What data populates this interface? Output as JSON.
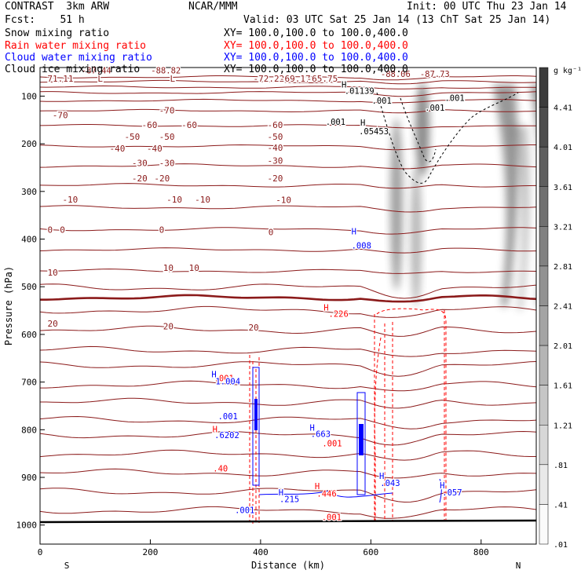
{
  "header": {
    "model": "CONTRAST  3km ARW",
    "center": "NCAR/MMM",
    "init": "Init: 00 UTC Thu 23 Jan 14",
    "fcst": "Fcst:    51 h",
    "valid": "Valid: 03 UTC Sat 25 Jan 14 (13 ChT Sat 25 Jan 14)"
  },
  "fields": [
    {
      "name": "Snow mixing ratio",
      "xy": "",
      "color": "#000000"
    },
    {
      "name": "Rain water mixing ratio",
      "xy": "XY= 100.0,100.0 to 100.0,400.0",
      "color": "#ff0000"
    },
    {
      "name": "Cloud water mixing ratio",
      "xy": "XY= 100.0,100.0 to 100.0,400.0",
      "color": "#0000ff"
    },
    {
      "name": "Cloud ice mixing ratio",
      "xy": "XY= 100.0,100.0 to 100.0,400.0",
      "color": "#000000"
    }
  ],
  "snow_xy": "XY= 100.0,100.0 to 100.0,400.0",
  "colors": {
    "temp_contour": "#8b1a1a",
    "rain": "#ff0000",
    "cloud_water": "#0000ff",
    "ice": "#000000"
  },
  "chart_data": {
    "type": "cross-section",
    "xlabel": "Distance (km)",
    "ylabel": "Pressure (hPa)",
    "xlim": [
      0,
      900
    ],
    "ylim": [
      1040,
      40
    ],
    "xticks": [
      0,
      200,
      400,
      600,
      800
    ],
    "yticks": [
      100,
      200,
      300,
      400,
      500,
      600,
      700,
      800,
      900,
      1000
    ],
    "end_labels": {
      "left": "S",
      "right": "N"
    },
    "colorbar": {
      "unit": "g kg⁻¹",
      "levels": [
        "4.41",
        "4.01",
        "3.61",
        "3.21",
        "2.81",
        "2.41",
        "2.01",
        "1.61",
        "1.21",
        ".81",
        ".41",
        ".01"
      ]
    },
    "isotherms": [
      {
        "value": -70,
        "p": 140
      },
      {
        "value": -60,
        "p": 160
      },
      {
        "value": -50,
        "p": 185
      },
      {
        "value": -40,
        "p": 210
      },
      {
        "value": -30,
        "p": 240
      },
      {
        "value": -20,
        "p": 272
      },
      {
        "value": -10,
        "p": 317
      },
      {
        "value": 0,
        "p": 380
      },
      {
        "value": 10,
        "p": 458
      },
      {
        "value": 20,
        "p": 580
      }
    ],
    "temp_labels": [
      {
        "text": "-70",
        "x": 25,
        "p": 140
      },
      {
        "text": "-70",
        "x": 240,
        "p": 130
      },
      {
        "text": "-60",
        "x": 205,
        "p": 160
      },
      {
        "text": "-60",
        "x": 285,
        "p": 160
      },
      {
        "text": "-60",
        "x": 458,
        "p": 160
      },
      {
        "text": "-50",
        "x": 170,
        "p": 185
      },
      {
        "text": "-50",
        "x": 240,
        "p": 185
      },
      {
        "text": "-50",
        "x": 458,
        "p": 185
      },
      {
        "text": "-40",
        "x": 140,
        "p": 210
      },
      {
        "text": "-40",
        "x": 215,
        "p": 210
      },
      {
        "text": "-40",
        "x": 458,
        "p": 208
      },
      {
        "text": "-30",
        "x": 185,
        "p": 240
      },
      {
        "text": "-30",
        "x": 240,
        "p": 240
      },
      {
        "text": "-30",
        "x": 458,
        "p": 235
      },
      {
        "text": "-20",
        "x": 185,
        "p": 272
      },
      {
        "text": "-20",
        "x": 230,
        "p": 272
      },
      {
        "text": "-20",
        "x": 458,
        "p": 272
      },
      {
        "text": "-10",
        "x": 45,
        "p": 317
      },
      {
        "text": "-10",
        "x": 255,
        "p": 317
      },
      {
        "text": "-10",
        "x": 312,
        "p": 317
      },
      {
        "text": "-10",
        "x": 475,
        "p": 318
      },
      {
        "text": "0",
        "x": 15,
        "p": 380
      },
      {
        "text": "0",
        "x": 40,
        "p": 380
      },
      {
        "text": "0",
        "x": 240,
        "p": 380
      },
      {
        "text": "0",
        "x": 460,
        "p": 385
      },
      {
        "text": "10",
        "x": 15,
        "p": 470
      },
      {
        "text": "10",
        "x": 248,
        "p": 460
      },
      {
        "text": "10",
        "x": 300,
        "p": 460
      },
      {
        "text": "20",
        "x": 15,
        "p": 577
      },
      {
        "text": "20",
        "x": 248,
        "p": 583
      },
      {
        "text": "20",
        "x": 420,
        "p": 585
      }
    ],
    "top_extremes": [
      {
        "text": "71.11",
        "x": 14
      },
      {
        "text": "L",
        "x": 110
      },
      {
        "text": "L",
        "x": 248
      },
      {
        "text": "-72.22",
        "x": 407
      },
      {
        "text": "-69.17",
        "x": 457
      },
      {
        "text": "-65.75",
        "x": 509
      }
    ],
    "extrema": [
      {
        "text": "-87.44",
        "x": 128,
        "p": 52,
        "color": "#8b1a1a"
      },
      {
        "text": "-88.82",
        "x": 268,
        "p": 52,
        "color": "#8b1a1a"
      },
      {
        "text": "-88.06",
        "x": 731,
        "p": 60,
        "color": "#8b1a1a"
      },
      {
        "text": "-87.73",
        "x": 810,
        "p": 60,
        "color": "#8b1a1a"
      },
      {
        "text": "H",
        "x": 652,
        "p": 82,
        "color": "#000000"
      },
      {
        "text": ".01139",
        "x": 658,
        "p": 95,
        "color": "#000000"
      },
      {
        "text": ".001",
        "x": 620,
        "p": 160,
        "color": "#000000"
      },
      {
        "text": "H",
        "x": 690,
        "p": 162,
        "color": "#000000"
      },
      {
        "text": ".05453",
        "x": 687,
        "p": 180,
        "color": "#000000"
      },
      {
        "text": ".001",
        "x": 713,
        "p": 116,
        "color": "#000000"
      },
      {
        "text": ".001",
        "x": 820,
        "p": 131,
        "color": "#000000"
      },
      {
        "text": ".001",
        "x": 860,
        "p": 110,
        "color": "#000000"
      },
      {
        "text": "H",
        "x": 672,
        "p": 390,
        "color": "#0000ff"
      },
      {
        "text": ".008",
        "x": 672,
        "p": 420,
        "color": "#0000ff"
      },
      {
        "text": "H",
        "x": 616,
        "p": 550,
        "color": "#ff0000"
      },
      {
        "text": ".226",
        "x": 626,
        "p": 563,
        "color": "#ff0000"
      },
      {
        "text": "H",
        "x": 390,
        "p": 690,
        "color": "#0000ff"
      },
      {
        "text": ".001",
        "x": 395,
        "p": 698,
        "color": "#ff0000"
      },
      {
        "text": "1.004",
        "x": 398,
        "p": 705,
        "color": "#0000ff"
      },
      {
        "text": ".001",
        "x": 403,
        "p": 778,
        "color": "#0000ff"
      },
      {
        "text": "H",
        "x": 392,
        "p": 805,
        "color": "#ff0000"
      },
      {
        "text": ".6202",
        "x": 396,
        "p": 818,
        "color": "#0000ff"
      },
      {
        "text": ".40",
        "x": 393,
        "p": 888,
        "color": "#ff0000"
      },
      {
        "text": "H",
        "x": 588,
        "p": 802,
        "color": "#0000ff"
      },
      {
        "text": ".663",
        "x": 590,
        "p": 815,
        "color": "#0000ff"
      },
      {
        "text": ".001",
        "x": 613,
        "p": 835,
        "color": "#ff0000"
      },
      {
        "text": "H",
        "x": 598,
        "p": 925,
        "color": "#ff0000"
      },
      {
        "text": ".446",
        "x": 602,
        "p": 940,
        "color": "#ff0000"
      },
      {
        "text": ".001",
        "x": 612,
        "p": 990,
        "color": "#ff0000"
      },
      {
        "text": ".001",
        "x": 437,
        "p": 975,
        "color": "#0000ff"
      },
      {
        "text": "H",
        "x": 525,
        "p": 938,
        "color": "#0000ff"
      },
      {
        "text": ".215",
        "x": 527,
        "p": 952,
        "color": "#0000ff"
      },
      {
        "text": "H",
        "x": 728,
        "p": 903,
        "color": "#0000ff"
      },
      {
        "text": ".043",
        "x": 730,
        "p": 918,
        "color": "#0000ff"
      },
      {
        "text": "H",
        "x": 850,
        "p": 923,
        "color": "#0000ff"
      },
      {
        "text": ".057",
        "x": 855,
        "p": 938,
        "color": "#0000ff"
      }
    ]
  }
}
